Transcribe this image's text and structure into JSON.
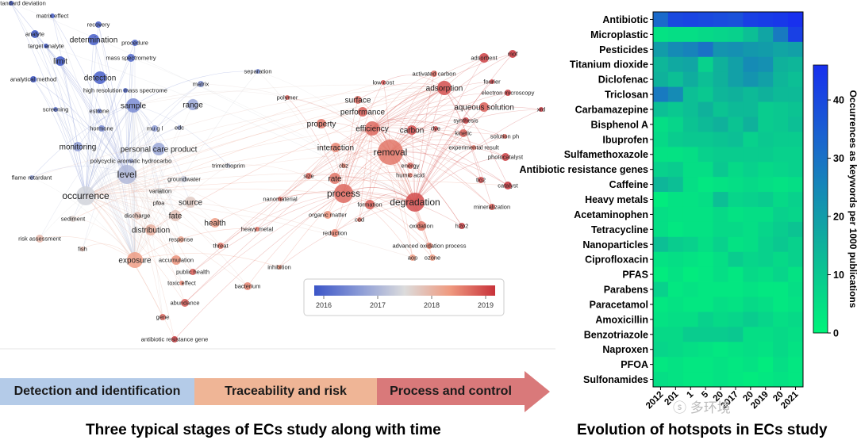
{
  "network": {
    "legend": {
      "ticks": [
        "2016",
        "2017",
        "2018",
        "2019"
      ],
      "colors": [
        "#3b55c7",
        "#8a9ad6",
        "#dcdcdc",
        "#ef9a80",
        "#c8323a"
      ]
    },
    "nodes": [
      {
        "label": "relative standard deviation",
        "year": 2016.0,
        "size": 3
      },
      {
        "label": "matrix effect",
        "year": 2016.1,
        "size": 3
      },
      {
        "label": "recovery",
        "year": 2016.1,
        "size": 4
      },
      {
        "label": "analyte",
        "year": 2016.0,
        "size": 5
      },
      {
        "label": "target analyte",
        "year": 2016.0,
        "size": 3
      },
      {
        "label": "determination",
        "year": 2016.1,
        "size": 7
      },
      {
        "label": "procedure",
        "year": 2016.2,
        "size": 4
      },
      {
        "label": "limit",
        "year": 2016.0,
        "size": 6
      },
      {
        "label": "mass spectrometry",
        "year": 2016.2,
        "size": 5
      },
      {
        "label": "analytical method",
        "year": 2016.0,
        "size": 4
      },
      {
        "label": "detection",
        "year": 2016.1,
        "size": 8
      },
      {
        "label": "high resolution mass spectrome",
        "year": 2016.2,
        "size": 3
      },
      {
        "label": "separation",
        "year": 2016.6,
        "size": 3
      },
      {
        "label": "matrix",
        "year": 2016.7,
        "size": 4
      },
      {
        "label": "screening",
        "year": 2016.3,
        "size": 3
      },
      {
        "label": "estrone",
        "year": 2016.5,
        "size": 3
      },
      {
        "label": "sample",
        "year": 2016.6,
        "size": 9
      },
      {
        "label": "range",
        "year": 2016.9,
        "size": 7
      },
      {
        "label": "hormone",
        "year": 2016.6,
        "size": 4
      },
      {
        "label": "mu g l",
        "year": 2016.8,
        "size": 4
      },
      {
        "label": "edc",
        "year": 2016.9,
        "size": 3
      },
      {
        "label": "monitoring",
        "year": 2016.8,
        "size": 6
      },
      {
        "label": "personal care product",
        "year": 2016.9,
        "size": 8
      },
      {
        "label": "polycyclic aromatic hydrocarbo",
        "year": 2016.9,
        "size": 3
      },
      {
        "label": "flame retardant",
        "year": 2016.8,
        "size": 3
      },
      {
        "label": "level",
        "year": 2017.1,
        "size": 12
      },
      {
        "label": "groundwater",
        "year": 2017.3,
        "size": 4
      },
      {
        "label": "trimethoprim",
        "year": 2017.3,
        "size": 3
      },
      {
        "label": "occurrence",
        "year": 2017.4,
        "size": 12
      },
      {
        "label": "variation",
        "year": 2017.5,
        "size": 4
      },
      {
        "label": "source",
        "year": 2017.7,
        "size": 7
      },
      {
        "label": "pfoa",
        "year": 2017.6,
        "size": 3
      },
      {
        "label": "sediment",
        "year": 2017.6,
        "size": 4
      },
      {
        "label": "discharge",
        "year": 2017.8,
        "size": 5
      },
      {
        "label": "fate",
        "year": 2017.8,
        "size": 7
      },
      {
        "label": "health",
        "year": 2018.2,
        "size": 6
      },
      {
        "label": "distribution",
        "year": 2018.0,
        "size": 7
      },
      {
        "label": "risk assessment",
        "year": 2017.9,
        "size": 5
      },
      {
        "label": "fish",
        "year": 2017.9,
        "size": 3
      },
      {
        "label": "response",
        "year": 2018.1,
        "size": 4
      },
      {
        "label": "threat",
        "year": 2018.5,
        "size": 4
      },
      {
        "label": "heavy metal",
        "year": 2018.5,
        "size": 3
      },
      {
        "label": "exposure",
        "year": 2018.2,
        "size": 10
      },
      {
        "label": "accumulation",
        "year": 2018.3,
        "size": 6
      },
      {
        "label": "public health",
        "year": 2018.7,
        "size": 4
      },
      {
        "label": "toxic effect",
        "year": 2018.4,
        "size": 3
      },
      {
        "label": "inhibition",
        "year": 2018.3,
        "size": 3
      },
      {
        "label": "bacterium",
        "year": 2018.4,
        "size": 5
      },
      {
        "label": "abundance",
        "year": 2018.7,
        "size": 5
      },
      {
        "label": "gene",
        "year": 2018.6,
        "size": 4
      },
      {
        "label": "antibiotic resistance gene",
        "year": 2018.9,
        "size": 4
      },
      {
        "label": "polymer",
        "year": 2018.7,
        "size": 3
      },
      {
        "label": "low cost",
        "year": 2018.8,
        "size": 3
      },
      {
        "label": "activated carbon",
        "year": 2018.6,
        "size": 4
      },
      {
        "label": "adsorbent",
        "year": 2018.9,
        "size": 6
      },
      {
        "label": "mof",
        "year": 2019.0,
        "size": 5
      },
      {
        "label": "surface",
        "year": 2018.6,
        "size": 5
      },
      {
        "label": "adsorption",
        "year": 2018.8,
        "size": 9
      },
      {
        "label": "fourier",
        "year": 2018.9,
        "size": 3
      },
      {
        "label": "electron microscopy",
        "year": 2018.9,
        "size": 4
      },
      {
        "label": "performance",
        "year": 2018.7,
        "size": 6
      },
      {
        "label": "xrd",
        "year": 2019.0,
        "size": 3
      },
      {
        "label": "aqueous solution",
        "year": 2018.7,
        "size": 6
      },
      {
        "label": "property",
        "year": 2018.5,
        "size": 6
      },
      {
        "label": "efficiency",
        "year": 2018.6,
        "size": 9
      },
      {
        "label": "carbon",
        "year": 2018.8,
        "size": 6
      },
      {
        "label": "synthesis",
        "year": 2018.9,
        "size": 4
      },
      {
        "label": "dye",
        "year": 2018.8,
        "size": 3
      },
      {
        "label": "kinetic",
        "year": 2018.7,
        "size": 5
      },
      {
        "label": "solution ph",
        "year": 2018.6,
        "size": 3
      },
      {
        "label": "interaction",
        "year": 2018.4,
        "size": 6
      },
      {
        "label": "removal",
        "year": 2018.5,
        "size": 16
      },
      {
        "label": "experimental result",
        "year": 2018.5,
        "size": 3
      },
      {
        "label": "photocatalyst",
        "year": 2018.9,
        "size": 5
      },
      {
        "label": "cbz",
        "year": 2018.4,
        "size": 3
      },
      {
        "label": "energy",
        "year": 2018.6,
        "size": 4
      },
      {
        "label": "humic acid",
        "year": 2018.5,
        "size": 3
      },
      {
        "label": "size",
        "year": 2018.6,
        "size": 4
      },
      {
        "label": "rate",
        "year": 2018.5,
        "size": 7
      },
      {
        "label": "tio2",
        "year": 2018.8,
        "size": 4
      },
      {
        "label": "catalyst",
        "year": 2019.0,
        "size": 5
      },
      {
        "label": "nanomaterial",
        "year": 2018.6,
        "size": 3
      },
      {
        "label": "process",
        "year": 2018.6,
        "size": 12
      },
      {
        "label": "formation",
        "year": 2018.7,
        "size": 6
      },
      {
        "label": "degradation",
        "year": 2018.8,
        "size": 12
      },
      {
        "label": "organic matter",
        "year": 2018.3,
        "size": 5
      },
      {
        "label": "cod",
        "year": 2018.5,
        "size": 3
      },
      {
        "label": "mineralization",
        "year": 2018.7,
        "size": 4
      },
      {
        "label": "reduction",
        "year": 2018.4,
        "size": 5
      },
      {
        "label": "oxidation",
        "year": 2018.5,
        "size": 6
      },
      {
        "label": "h2o2",
        "year": 2018.9,
        "size": 4
      },
      {
        "label": "advanced oxidation process",
        "year": 2018.4,
        "size": 4
      },
      {
        "label": "aop",
        "year": 2018.2,
        "size": 4
      },
      {
        "label": "ozone",
        "year": 2018.2,
        "size": 4
      }
    ]
  },
  "stages": {
    "detection": "Detection and identification",
    "traceability": "Traceability and risk",
    "process": "Process and control"
  },
  "captions": {
    "left": "Three typical stages of ECs study along with time",
    "right": "Evolution of hotspots in ECs study"
  },
  "watermark": "ⓢ 多环境",
  "chart_data": {
    "type": "heatmap",
    "title": "Evolution of hotspots in ECs study",
    "colorbar_label": "Occurrences as keywords per 1000 publications",
    "colorbar_ticks": [
      0,
      10,
      20,
      30,
      40
    ],
    "color_range": [
      0,
      46
    ],
    "colormap": [
      "#00f47a",
      "#0fb09c",
      "#1a6fc8",
      "#1830ee"
    ],
    "x": [
      "2012",
      "2013",
      "2014",
      "2015",
      "2016",
      "2017",
      "2018",
      "2019",
      "2020",
      "2021"
    ],
    "x_tick_labels": [
      "2012",
      "201",
      "1",
      "5",
      "20",
      "2017",
      "20",
      "2019",
      "20",
      "2021"
    ],
    "y": [
      "Antibiotic",
      "Microplastic",
      "Pesticides",
      "Titanium dioxide",
      "Diclofenac",
      "Triclosan",
      "Carbamazepine",
      "Bisphenol A",
      "Ibuprofen",
      "Sulfamethoxazole",
      "Antibiotic resistance genes",
      "Caffeine",
      "Heavy metals",
      "Acetaminophen",
      "Tetracycline",
      "Nanoparticles",
      "Ciprofloxacin",
      "PFAS",
      "Parabens",
      "Paracetamol",
      "Amoxicillin",
      "Benzotriazole",
      "Naproxen",
      "PFOA",
      "Sulfonamides"
    ],
    "values": [
      [
        32,
        40,
        41,
        40,
        39,
        38,
        42,
        43,
        44,
        46
      ],
      [
        4,
        5,
        5,
        6,
        7,
        8,
        12,
        18,
        28,
        42
      ],
      [
        20,
        24,
        26,
        30,
        22,
        23,
        21,
        20,
        18,
        19
      ],
      [
        14,
        17,
        18,
        8,
        15,
        19,
        24,
        23,
        15,
        14
      ],
      [
        15,
        12,
        16,
        12,
        15,
        19,
        22,
        19,
        14,
        12
      ],
      [
        28,
        24,
        12,
        10,
        14,
        15,
        13,
        15,
        13,
        13
      ],
      [
        12,
        10,
        12,
        15,
        11,
        13,
        13,
        9,
        10,
        11
      ],
      [
        5,
        7,
        11,
        13,
        15,
        11,
        15,
        9,
        10,
        12
      ],
      [
        6,
        9,
        10,
        10,
        11,
        12,
        8,
        10,
        9,
        9
      ],
      [
        4,
        4,
        5,
        8,
        9,
        9,
        9,
        9,
        8,
        8
      ],
      [
        8,
        9,
        5,
        5,
        10,
        6,
        8,
        6,
        7,
        8
      ],
      [
        14,
        12,
        5,
        3,
        4,
        5,
        6,
        5,
        4,
        5
      ],
      [
        2,
        4,
        4,
        5,
        12,
        7,
        8,
        9,
        6,
        8
      ],
      [
        5,
        4,
        4,
        4,
        6,
        4,
        5,
        5,
        8,
        7
      ],
      [
        5,
        3,
        4,
        4,
        6,
        6,
        5,
        7,
        9,
        11
      ],
      [
        12,
        9,
        8,
        5,
        8,
        4,
        5,
        8,
        10,
        8
      ],
      [
        4,
        5,
        4,
        3,
        5,
        9,
        7,
        8,
        6,
        8
      ],
      [
        2,
        4,
        2,
        3,
        5,
        3,
        6,
        5,
        7,
        4
      ],
      [
        8,
        3,
        4,
        3,
        3,
        3,
        4,
        3,
        3,
        5
      ],
      [
        3,
        4,
        3,
        3,
        5,
        4,
        6,
        5,
        3,
        4
      ],
      [
        4,
        5,
        5,
        8,
        6,
        7,
        9,
        7,
        5,
        6
      ],
      [
        6,
        6,
        9,
        9,
        9,
        10,
        5,
        5,
        6,
        5
      ],
      [
        7,
        6,
        5,
        4,
        3,
        4,
        5,
        4,
        6,
        4
      ],
      [
        3,
        4,
        3,
        3,
        4,
        3,
        4,
        2,
        5,
        3
      ],
      [
        5,
        4,
        3,
        3,
        4,
        3,
        2,
        3,
        4,
        3
      ]
    ]
  }
}
